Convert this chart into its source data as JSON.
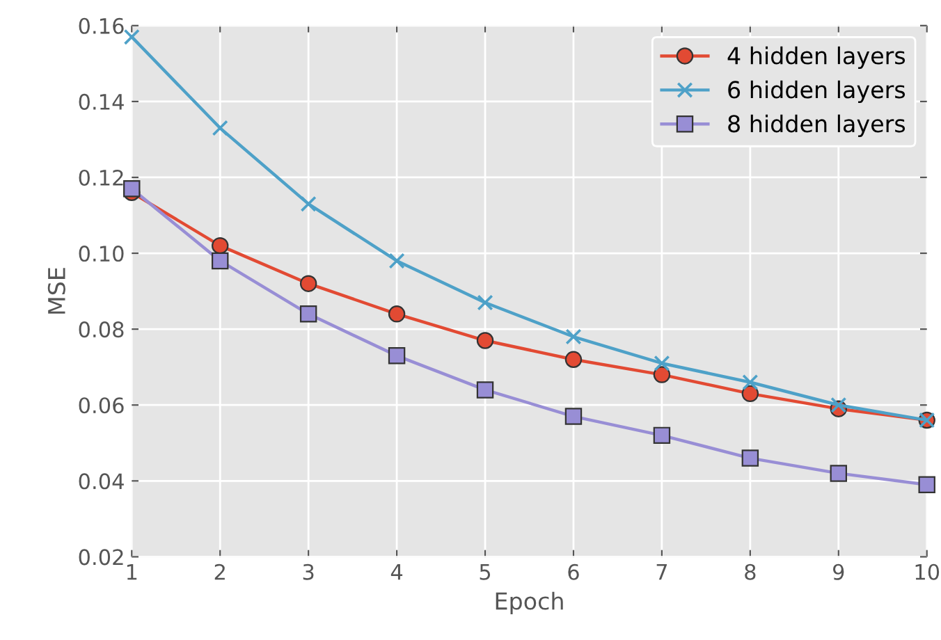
{
  "chart_data": {
    "type": "line",
    "xlabel": "Epoch",
    "ylabel": "MSE",
    "x": [
      1,
      2,
      3,
      4,
      5,
      6,
      7,
      8,
      9,
      10
    ],
    "series": [
      {
        "name": "4 hidden layers",
        "color": "#e24a33",
        "marker": "circle",
        "values": [
          0.116,
          0.102,
          0.092,
          0.084,
          0.077,
          0.072,
          0.068,
          0.063,
          0.059,
          0.056
        ]
      },
      {
        "name": "6 hidden layers",
        "color": "#4ea1c8",
        "marker": "cross",
        "values": [
          0.157,
          0.133,
          0.113,
          0.098,
          0.087,
          0.078,
          0.071,
          0.066,
          0.06,
          0.056
        ]
      },
      {
        "name": "8 hidden layers",
        "color": "#988ed5",
        "marker": "square",
        "values": [
          0.117,
          0.098,
          0.084,
          0.073,
          0.064,
          0.057,
          0.052,
          0.046,
          0.042,
          0.039
        ]
      }
    ],
    "xlim": [
      1,
      10
    ],
    "xticks": [
      1,
      2,
      3,
      4,
      5,
      6,
      7,
      8,
      9,
      10
    ],
    "ylim": [
      0.02,
      0.16
    ],
    "yticks": [
      {
        "value": 0.02,
        "label": "0.02"
      },
      {
        "value": 0.04,
        "label": "0.04"
      },
      {
        "value": 0.06,
        "label": "0.06"
      },
      {
        "value": 0.08,
        "label": "0.08"
      },
      {
        "value": 0.1,
        "label": "0.10"
      },
      {
        "value": 0.12,
        "label": "0.12"
      },
      {
        "value": 0.14,
        "label": "0.14"
      },
      {
        "value": 0.16,
        "label": "0.16"
      }
    ],
    "grid": true,
    "legend": "top right",
    "line_style": "solid"
  }
}
